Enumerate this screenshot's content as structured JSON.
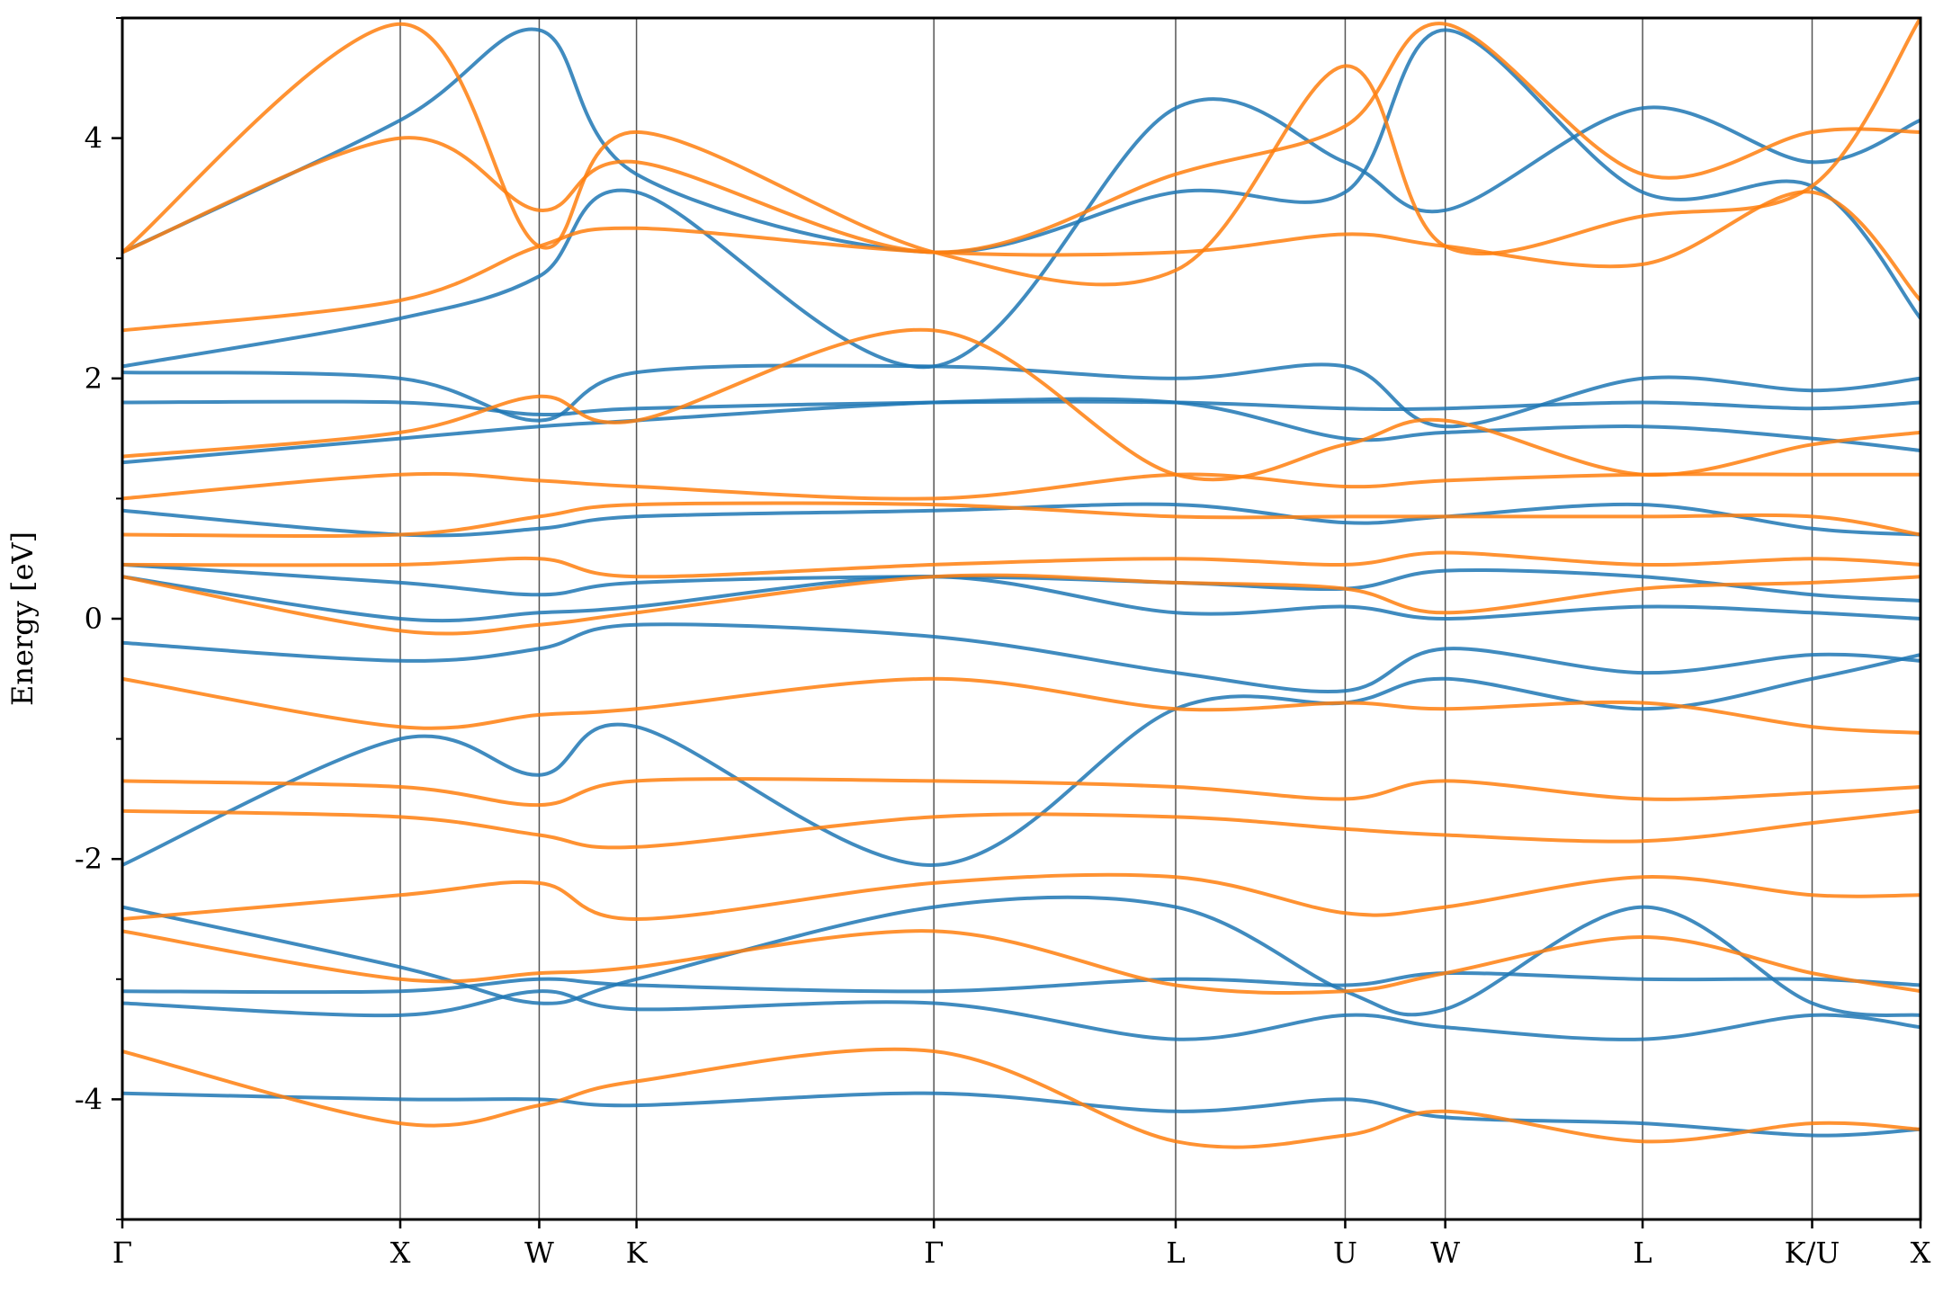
{
  "chart_data": {
    "type": "line",
    "title": "",
    "xlabel": "",
    "ylabel": "Energy [eV]",
    "ylim": [
      -5,
      5
    ],
    "yticks": [
      -4,
      -2,
      0,
      2,
      4
    ],
    "yticks_minor": [
      -5,
      -3,
      -1,
      1,
      3,
      5
    ],
    "ytick_labels": [
      "-4",
      "-2",
      "0",
      "2",
      "4"
    ],
    "grid": "vertical lines at high-symmetry points",
    "legend": "none",
    "kpath_end": 6.47,
    "high_symmetry_points": [
      {
        "label": "Γ",
        "x": 0.0
      },
      {
        "label": "X",
        "x": 1.0
      },
      {
        "label": "W",
        "x": 1.5
      },
      {
        "label": "K",
        "x": 1.85
      },
      {
        "label": "Γ",
        "x": 2.92
      },
      {
        "label": "L",
        "x": 3.79
      },
      {
        "label": "U",
        "x": 4.4
      },
      {
        "label": "W",
        "x": 4.76
      },
      {
        "label": "L",
        "x": 5.47
      },
      {
        "label": "K/U",
        "x": 6.08
      },
      {
        "label": "X",
        "x": 6.47
      }
    ],
    "series": [
      {
        "color": "#1f77b4",
        "bands": [
          [
            -3.95,
            -4.0,
            -4.0,
            -4.05,
            -3.95,
            -4.1,
            -4.0,
            -4.15,
            -4.2,
            -4.3,
            -4.25
          ],
          [
            -3.2,
            -3.3,
            -3.1,
            -3.25,
            -3.2,
            -3.5,
            -3.3,
            -3.4,
            -3.5,
            -3.3,
            -3.4
          ],
          [
            -3.1,
            -3.1,
            -3.0,
            -3.05,
            -3.1,
            -3.0,
            -3.05,
            -2.95,
            -3.0,
            -3.0,
            -3.05
          ],
          [
            -2.4,
            -2.9,
            -3.2,
            -3.0,
            -2.4,
            -2.4,
            -3.1,
            -3.25,
            -2.4,
            -3.2,
            -3.3
          ],
          [
            -2.05,
            -1.0,
            -1.3,
            -0.9,
            -2.05,
            -0.75,
            -0.7,
            -0.5,
            -0.75,
            -0.5,
            -0.3
          ],
          [
            -0.2,
            -0.35,
            -0.25,
            -0.05,
            -0.15,
            -0.45,
            -0.6,
            -0.25,
            -0.45,
            -0.3,
            -0.35
          ],
          [
            0.35,
            0.0,
            0.05,
            0.1,
            0.35,
            0.05,
            0.1,
            0.0,
            0.1,
            0.05,
            0.0
          ],
          [
            0.45,
            0.3,
            0.2,
            0.3,
            0.35,
            0.3,
            0.25,
            0.4,
            0.35,
            0.2,
            0.15
          ],
          [
            0.9,
            0.7,
            0.75,
            0.85,
            0.9,
            0.95,
            0.8,
            0.85,
            0.95,
            0.75,
            0.7
          ],
          [
            1.3,
            1.5,
            1.6,
            1.65,
            1.8,
            1.8,
            1.5,
            1.55,
            1.6,
            1.5,
            1.4
          ],
          [
            1.8,
            1.8,
            1.7,
            1.75,
            1.8,
            1.8,
            1.75,
            1.75,
            1.8,
            1.75,
            1.8
          ],
          [
            2.05,
            2.0,
            1.65,
            2.05,
            2.1,
            2.0,
            2.1,
            1.6,
            2.0,
            1.9,
            2.0
          ],
          [
            2.1,
            2.5,
            2.85,
            3.55,
            2.1,
            4.25,
            3.8,
            3.4,
            4.25,
            3.8,
            4.15
          ],
          [
            3.05,
            4.15,
            4.9,
            3.7,
            3.05,
            3.55,
            3.55,
            4.9,
            3.55,
            3.6,
            2.5
          ]
        ]
      },
      {
        "color": "#ff7f0e",
        "bands": [
          [
            -3.6,
            -4.2,
            -4.05,
            -3.85,
            -3.6,
            -4.35,
            -4.3,
            -4.1,
            -4.35,
            -4.2,
            -4.25
          ],
          [
            -2.6,
            -3.0,
            -2.95,
            -2.9,
            -2.6,
            -3.05,
            -3.1,
            -2.95,
            -2.65,
            -2.95,
            -3.1
          ],
          [
            -2.5,
            -2.3,
            -2.2,
            -2.5,
            -2.2,
            -2.15,
            -2.45,
            -2.4,
            -2.15,
            -2.3,
            -2.3
          ],
          [
            -1.6,
            -1.65,
            -1.8,
            -1.9,
            -1.65,
            -1.65,
            -1.75,
            -1.8,
            -1.85,
            -1.7,
            -1.6
          ],
          [
            -1.35,
            -1.4,
            -1.55,
            -1.35,
            -1.35,
            -1.4,
            -1.5,
            -1.35,
            -1.5,
            -1.45,
            -1.4
          ],
          [
            -0.5,
            -0.9,
            -0.8,
            -0.75,
            -0.5,
            -0.75,
            -0.7,
            -0.75,
            -0.7,
            -0.9,
            -0.95
          ],
          [
            0.35,
            -0.1,
            -0.05,
            0.05,
            0.35,
            0.3,
            0.25,
            0.05,
            0.25,
            0.3,
            0.35
          ],
          [
            0.45,
            0.45,
            0.5,
            0.35,
            0.45,
            0.5,
            0.45,
            0.55,
            0.45,
            0.5,
            0.45
          ],
          [
            0.7,
            0.7,
            0.85,
            0.95,
            0.95,
            0.85,
            0.85,
            0.85,
            0.85,
            0.85,
            0.7
          ],
          [
            1.0,
            1.2,
            1.15,
            1.1,
            1.0,
            1.2,
            1.1,
            1.15,
            1.2,
            1.2,
            1.2
          ],
          [
            1.35,
            1.55,
            1.85,
            1.65,
            2.4,
            1.2,
            1.45,
            1.65,
            1.2,
            1.45,
            1.55
          ],
          [
            2.4,
            2.65,
            3.1,
            3.25,
            3.05,
            3.05,
            3.2,
            3.1,
            2.95,
            3.55,
            2.65
          ],
          [
            3.05,
            4.0,
            3.4,
            3.8,
            3.05,
            3.7,
            4.1,
            4.95,
            3.7,
            4.05,
            4.05
          ],
          [
            3.05,
            4.95,
            3.1,
            4.05,
            3.05,
            2.9,
            4.6,
            3.1,
            3.35,
            3.6,
            5.0
          ]
        ]
      }
    ]
  }
}
